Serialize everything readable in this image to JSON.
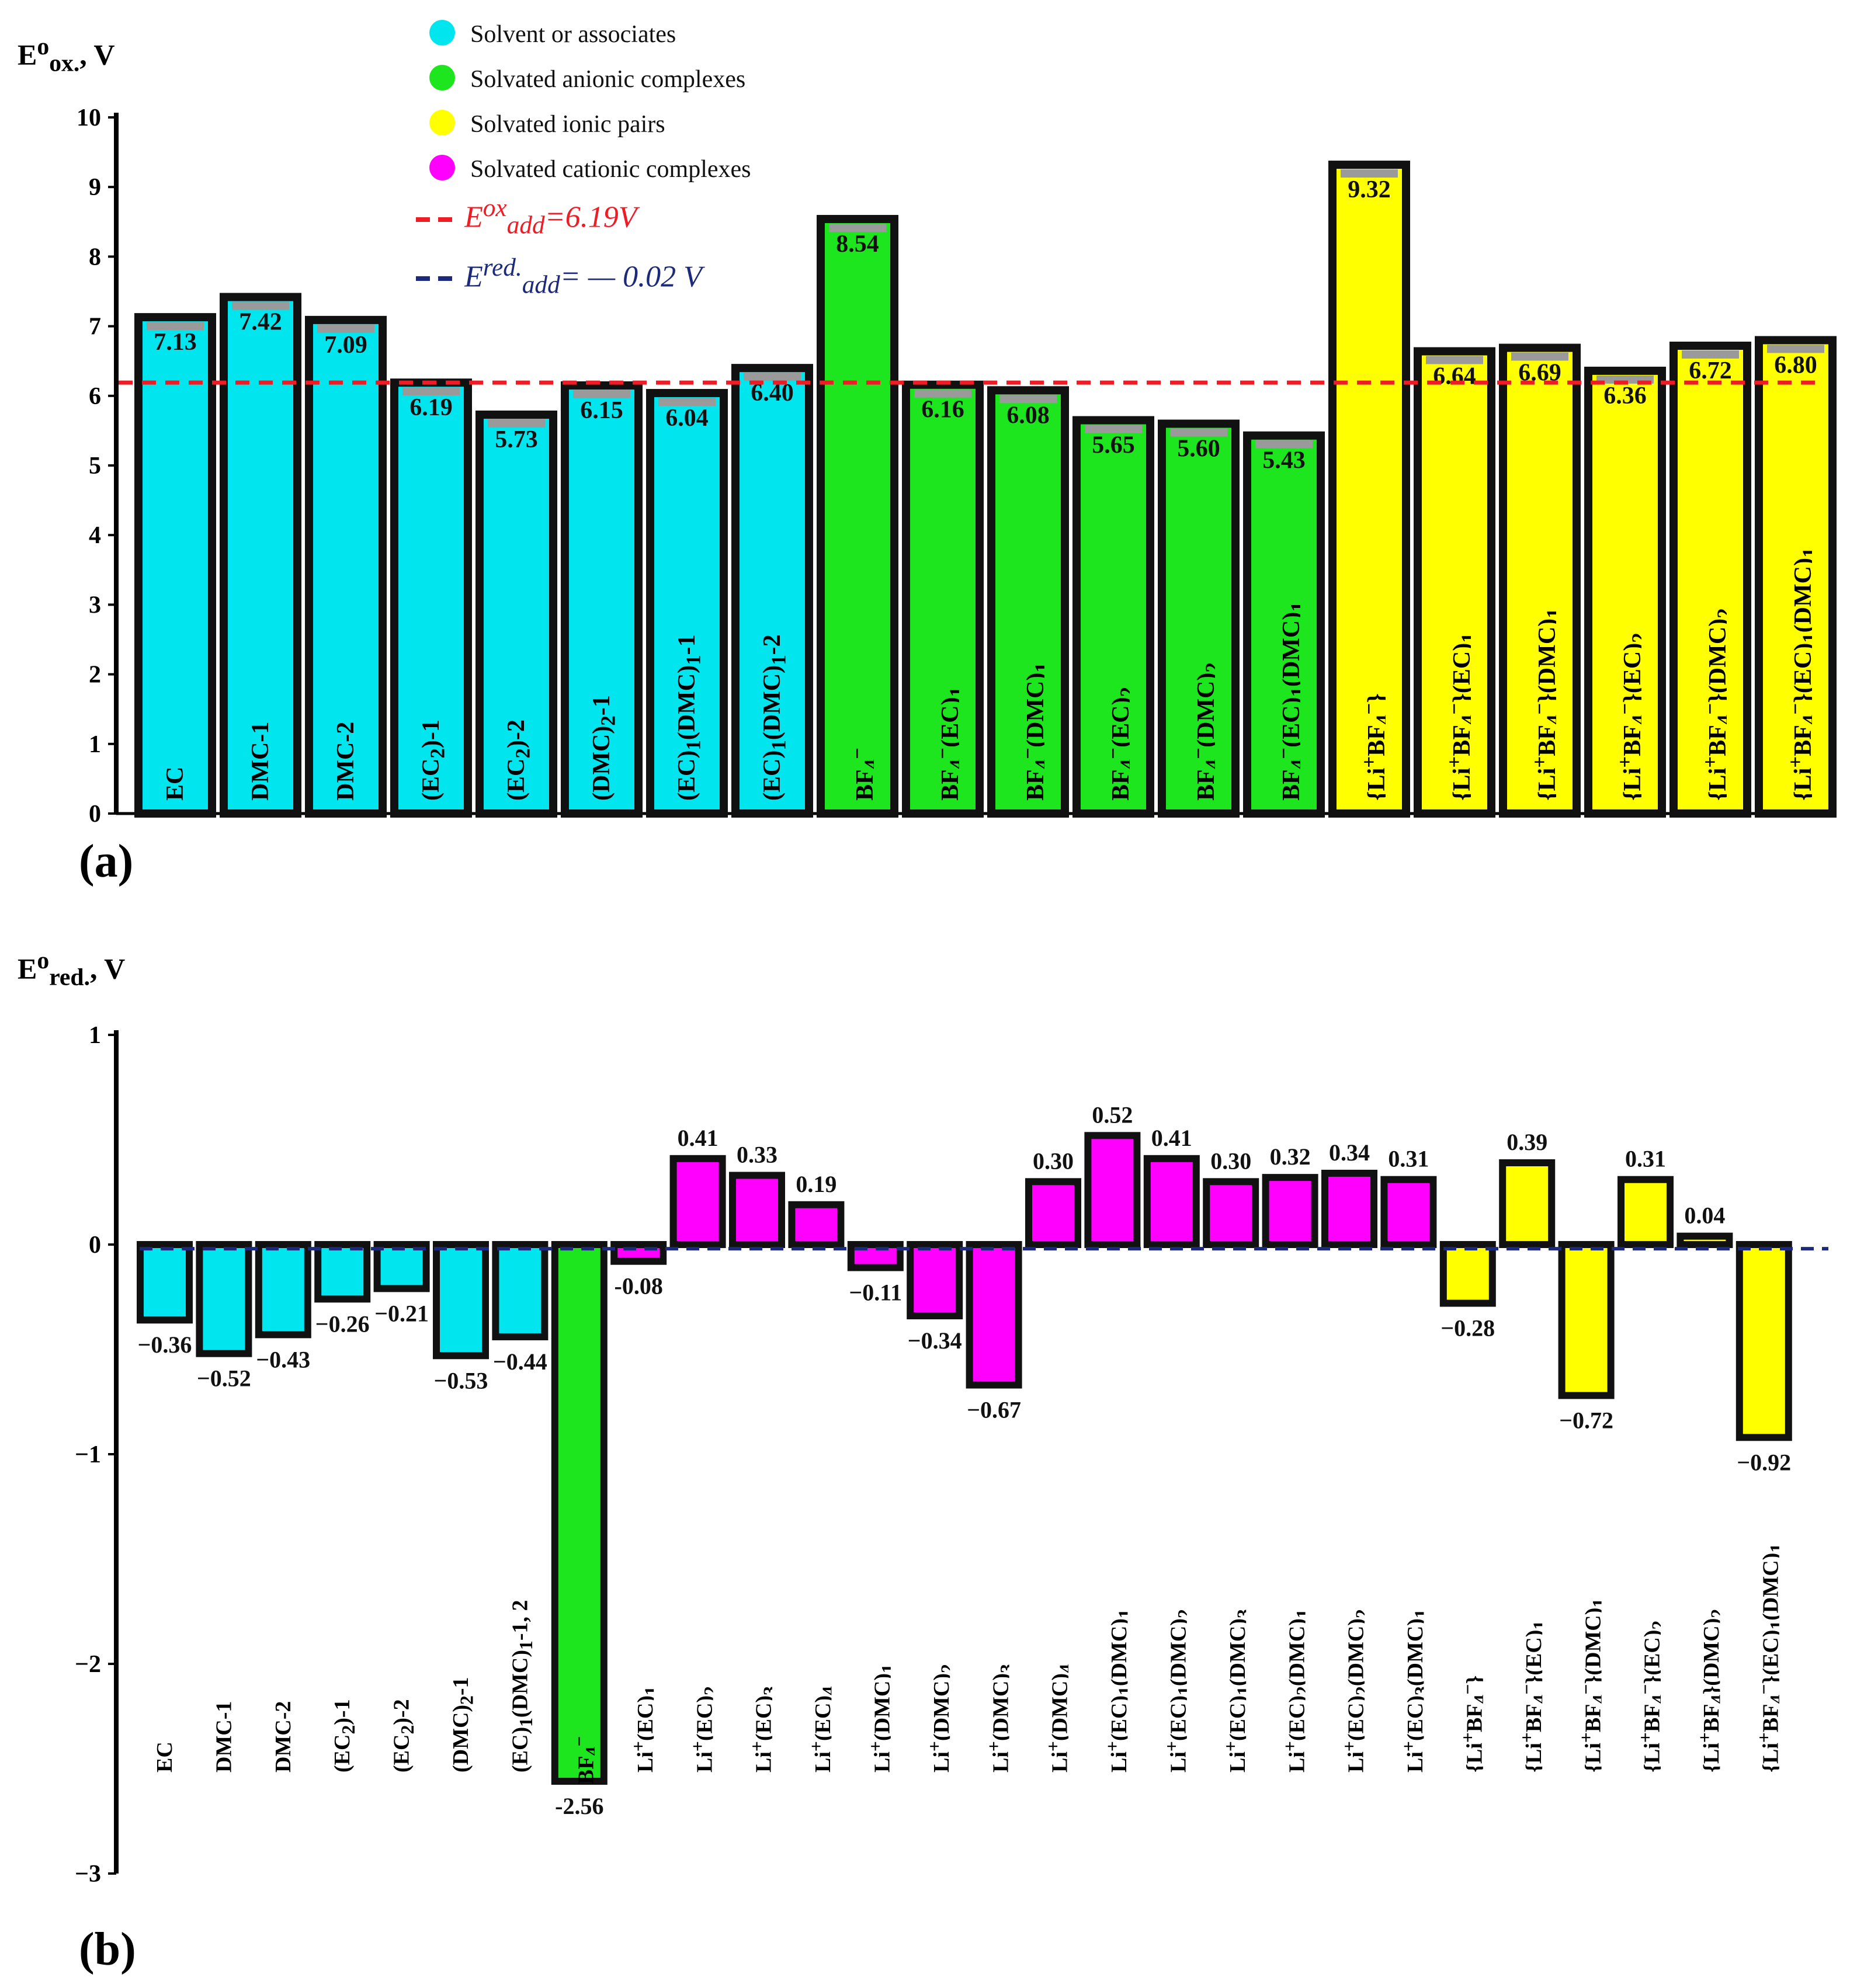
{
  "legend": {
    "items": [
      {
        "label": "Solvent or associates",
        "color": "#00e5ee"
      },
      {
        "label": "Solvated anionic complexes",
        "color": "#1ee61e"
      },
      {
        "label": "Solvated ionic pairs",
        "color": "#ffff00"
      },
      {
        "label": "Solvated cationic complexes",
        "color": "#ff00ff"
      }
    ],
    "ox_line": {
      "label_html": "E<sup>ox</sup><sub>add</sub>=6.19V",
      "value": 6.19,
      "color": "#ee1c24"
    },
    "red_line": {
      "label_html": "E<sup>red.</sup><sub>add</sub>= — 0.02 V",
      "value": -0.02,
      "color": "#1b2a7a"
    }
  },
  "chart_data": [
    {
      "type": "bar",
      "panel_label": "(a)",
      "ylabel_html": "E<sup>o</sup><sub>ox.</sub>, V",
      "ylim": [
        0,
        10
      ],
      "yticks": [
        "0",
        "1",
        "2",
        "3",
        "4",
        "5",
        "6",
        "7",
        "8",
        "9",
        "10"
      ],
      "reference_line": 6.19,
      "categories": [
        "EC",
        "DMC-1",
        "DMC-2",
        "(EC2)-1",
        "(EC2)-2",
        "(DMC)2-1",
        "(EC)1(DMC)1-1",
        "(EC)1(DMC)1-2",
        "BF4−",
        "BF4−(EC)1",
        "BF4−(DMC)1",
        "BF4−(EC)2",
        "BF4−(DMC)2",
        "BF4−(EC)1(DMC)1",
        "{Li+BF4−}",
        "{Li+BF4−}(EC)1",
        "{Li+BF4−}(DMC)1",
        "{Li+BF4−}(EC)2",
        "{Li+BF4−}(DMC)2",
        "{Li+BF4−}(EC)1(DMC)1"
      ],
      "category_html": [
        "EC",
        "DMC-1",
        "DMC-2",
        "(EC<sub>2</sub>)-1",
        "(EC<sub>2</sub>)-2",
        "(DMC)<sub>2</sub>-1",
        "(EC)<sub>1</sub>(DMC)<sub>1</sub>-1",
        "(EC)<sub>1</sub>(DMC)<sub>1</sub>-2",
        "BF<sub>4</sub><sup>−</sup>",
        "BF<sub>4</sub><sup>−</sup>(EC)<sub>1</sub>",
        "BF<sub>4</sub><sup>−</sup>(DMC)<sub>1</sub>",
        "BF<sub>4</sub><sup>−</sup>(EC)<sub>2</sub>",
        "BF<sub>4</sub><sup>−</sup>(DMC)<sub>2</sub>",
        "BF<sub>4</sub><sup>−</sup>(EC)<sub>1</sub>(DMC)<sub>1</sub>",
        "{Li<sup>+</sup>BF<sub>4</sub><sup>−</sup>}",
        "{Li<sup>+</sup>BF<sub>4</sub><sup>−</sup>}(EC)<sub>1</sub>",
        "{Li<sup>+</sup>BF<sub>4</sub><sup>−</sup>}(DMC)<sub>1</sub>",
        "{Li<sup>+</sup>BF<sub>4</sub><sup>−</sup>}(EC)<sub>2</sub>",
        "{Li<sup>+</sup>BF<sub>4</sub><sup>−</sup>}(DMC)<sub>2</sub>",
        "{Li<sup>+</sup>BF<sub>4</sub><sup>−</sup>}(EC)<sub>1</sub>(DMC)<sub>1</sub>"
      ],
      "values": [
        7.13,
        7.42,
        7.09,
        6.19,
        5.73,
        6.15,
        6.04,
        6.4,
        8.54,
        6.16,
        6.08,
        5.65,
        5.6,
        5.43,
        9.32,
        6.64,
        6.69,
        6.36,
        6.72,
        6.8
      ],
      "value_labels": [
        "7.13",
        "7.42",
        "7.09",
        "6.19",
        "5.73",
        "6.15",
        "6.04",
        "6.40",
        "8.54",
        "6.16",
        "6.08",
        "5.65",
        "5.60",
        "5.43",
        "9.32",
        "6.64",
        "6.69",
        "6.36",
        "6.72",
        "6.80"
      ],
      "groups": [
        "solvent",
        "solvent",
        "solvent",
        "solvent",
        "solvent",
        "solvent",
        "solvent",
        "solvent",
        "anionic",
        "anionic",
        "anionic",
        "anionic",
        "anionic",
        "anionic",
        "ionic",
        "ionic",
        "ionic",
        "ionic",
        "ionic",
        "ionic"
      ]
    },
    {
      "type": "bar",
      "panel_label": "(b)",
      "ylabel_html": "E<sup>o</sup><sub>red.</sub>, V",
      "ylim": [
        -3,
        1
      ],
      "yticks": [
        "−3",
        "−2",
        "−1",
        "0",
        "1"
      ],
      "reference_line": -0.02,
      "categories": [
        "EC",
        "DMC-1",
        "DMC-2",
        "(EC2)-1",
        "(EC2)-2",
        "(DMC)2-1",
        "(EC)1(DMC)1-1, 2",
        "BF4−",
        "Li+(EC)1",
        "Li+(EC)2",
        "Li+(EC)3",
        "Li+(EC)4",
        "Li+(DMC)1",
        "Li+(DMC)2",
        "Li+(DMC)3",
        "Li+(DMC)4",
        "Li+(EC)1(DMC)1",
        "Li+(EC)1(DMC)2",
        "Li+(EC)1(DMC)3",
        "Li+(EC)2(DMC)1",
        "Li+(EC)2(DMC)2",
        "Li+(EC)3(DMC)1",
        "{Li+BF4−}",
        "{Li+BF4−}(EC)1",
        "{Li+BF4−}(DMC)1",
        "{Li+BF4−}(EC)2",
        "{Li+BF4}(DMC)2",
        "{Li+BF4−}(EC)1(DMC)1"
      ],
      "category_html": [
        "EC",
        "DMC-1",
        "DMC-2",
        "(EC<sub>2</sub>)-1",
        "(EC<sub>2</sub>)-2",
        "(DMC)<sub>2</sub>-1",
        "(EC)<sub>1</sub>(DMC)<sub>1</sub>-1, 2",
        "BF<sub>4</sub><sup>−</sup>",
        "Li<sup>+</sup>(EC)<sub>1</sub>",
        "Li<sup>+</sup>(EC)<sub>2</sub>",
        "Li<sup>+</sup>(EC)<sub>3</sub>",
        "Li<sup>+</sup>(EC)<sub>4</sub>",
        "Li<sup>+</sup>(DMC)<sub>1</sub>",
        "Li<sup>+</sup>(DMC)<sub>2</sub>",
        "Li<sup>+</sup>(DMC)<sub>3</sub>",
        "Li<sup>+</sup>(DMC)<sub>4</sub>",
        "Li<sup>+</sup>(EC)<sub>1</sub>(DMC)<sub>1</sub>",
        "Li<sup>+</sup>(EC)<sub>1</sub>(DMC)<sub>2</sub>",
        "Li<sup>+</sup>(EC)<sub>1</sub>(DMC)<sub>3</sub>",
        "Li<sup>+</sup>(EC)<sub>2</sub>(DMC)<sub>1</sub>",
        "Li<sup>+</sup>(EC)<sub>2</sub>(DMC)<sub>2</sub>",
        "Li<sup>+</sup>(EC)<sub>3</sub>(DMC)<sub>1</sub>",
        "{Li<sup>+</sup>BF<sub>4</sub><sup>−</sup>}",
        "{Li<sup>+</sup>BF<sub>4</sub><sup>−</sup>}(EC)<sub>1</sub>",
        "{Li<sup>+</sup>BF<sub>4</sub><sup>−</sup>}(DMC)<sub>1</sub>",
        "{Li<sup>+</sup>BF<sub>4</sub><sup>−</sup>}(EC)<sub>2</sub>",
        "{Li<sup>+</sup>BF<sub>4</sub>}(DMC)<sub>2</sub>",
        "{Li<sup>+</sup>BF<sub>4</sub><sup>−</sup>}(EC)<sub>1</sub>(DMC)<sub>1</sub>"
      ],
      "values": [
        -0.36,
        -0.52,
        -0.43,
        -0.26,
        -0.21,
        -0.53,
        -0.44,
        -2.56,
        -0.08,
        0.41,
        0.33,
        0.19,
        -0.11,
        -0.34,
        -0.67,
        0.3,
        0.52,
        0.41,
        0.3,
        0.32,
        0.34,
        0.31,
        -0.28,
        0.39,
        -0.72,
        0.31,
        0.04,
        -0.92
      ],
      "value_labels": [
        "−0.36",
        "−0.52",
        "−0.43",
        "−0.26",
        "−0.21",
        "−0.53",
        "−0.44",
        "-2.56",
        "-0.08",
        "0.41",
        "0.33",
        "0.19",
        "−0.11",
        "−0.34",
        "−0.67",
        "0.30",
        "0.52",
        "0.41",
        "0.30",
        "0.32",
        "0.34",
        "0.31",
        "−0.28",
        "0.39",
        "−0.72",
        "0.31",
        "0.04",
        "−0.92"
      ],
      "groups": [
        "solvent",
        "solvent",
        "solvent",
        "solvent",
        "solvent",
        "solvent",
        "solvent",
        "anionic",
        "cationic",
        "cationic",
        "cationic",
        "cationic",
        "cationic",
        "cationic",
        "cationic",
        "cationic",
        "cationic",
        "cationic",
        "cationic",
        "cationic",
        "cationic",
        "cationic",
        "ionic",
        "ionic",
        "ionic",
        "ionic",
        "ionic",
        "ionic"
      ]
    }
  ]
}
